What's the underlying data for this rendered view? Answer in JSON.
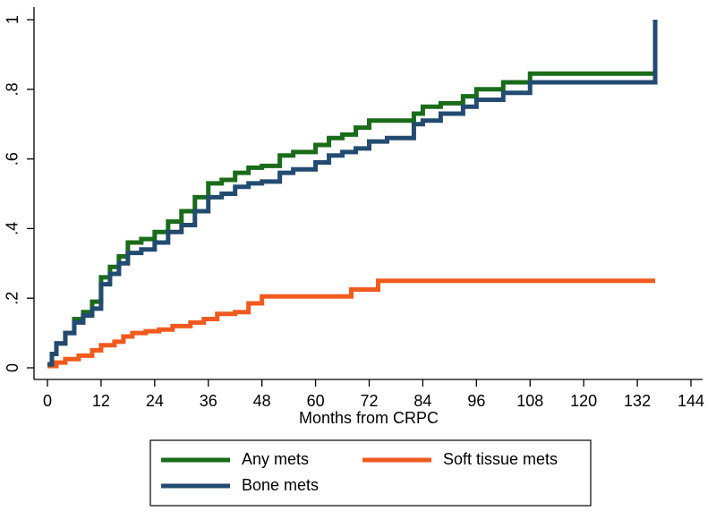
{
  "chart_data": {
    "type": "line",
    "step": true,
    "x_label": "Months from CRPC",
    "xlim": [
      0,
      144
    ],
    "xticks": [
      0,
      12,
      24,
      36,
      48,
      60,
      72,
      84,
      96,
      108,
      120,
      132,
      144
    ],
    "ylim": [
      0,
      1
    ],
    "yticks": [
      0,
      {
        "value": 0.2,
        "label": ".2"
      },
      {
        "value": 0.4,
        "label": ".4"
      },
      {
        "value": 0.6,
        "label": ".6"
      },
      {
        "value": 0.8,
        "label": ".8"
      },
      1
    ],
    "grid": false,
    "legend": "bottom",
    "series": [
      {
        "name": "Any mets",
        "color": "#1a6b1a",
        "x": [
          0,
          1,
          2,
          4,
          6,
          8,
          10,
          12,
          14,
          16,
          18,
          21,
          24,
          27,
          30,
          33,
          36,
          39,
          42,
          45,
          48,
          52,
          55,
          60,
          63,
          66,
          69,
          72,
          82,
          84,
          88,
          93,
          96,
          102,
          108,
          136
        ],
        "values": [
          0.01,
          0.04,
          0.07,
          0.1,
          0.14,
          0.16,
          0.19,
          0.26,
          0.29,
          0.32,
          0.36,
          0.37,
          0.39,
          0.42,
          0.45,
          0.49,
          0.53,
          0.54,
          0.56,
          0.575,
          0.58,
          0.61,
          0.62,
          0.64,
          0.66,
          0.67,
          0.69,
          0.71,
          0.73,
          0.75,
          0.76,
          0.78,
          0.8,
          0.82,
          0.845,
          0.845
        ]
      },
      {
        "name": "Soft tissue mets",
        "color": "#f05a1e",
        "x": [
          0,
          2,
          4,
          7,
          10,
          12,
          15,
          17,
          19,
          22,
          25,
          28,
          32,
          35,
          38,
          42,
          45,
          48,
          68,
          74,
          136
        ],
        "values": [
          0.005,
          0.015,
          0.025,
          0.035,
          0.05,
          0.065,
          0.075,
          0.09,
          0.1,
          0.105,
          0.11,
          0.12,
          0.13,
          0.14,
          0.155,
          0.16,
          0.185,
          0.205,
          0.225,
          0.25,
          0.25
        ]
      },
      {
        "name": "Bone mets",
        "color": "#234b70",
        "x": [
          0,
          1,
          2,
          4,
          6,
          8,
          10,
          12,
          14,
          16,
          18,
          21,
          24,
          27,
          30,
          33,
          36,
          39,
          42,
          45,
          48,
          52,
          55,
          60,
          63,
          66,
          69,
          72,
          76,
          82,
          84,
          88,
          93,
          96,
          102,
          108,
          136,
          136
        ],
        "values": [
          0.01,
          0.04,
          0.07,
          0.1,
          0.13,
          0.15,
          0.17,
          0.24,
          0.27,
          0.3,
          0.33,
          0.34,
          0.36,
          0.39,
          0.41,
          0.45,
          0.49,
          0.5,
          0.52,
          0.53,
          0.535,
          0.56,
          0.57,
          0.59,
          0.61,
          0.62,
          0.63,
          0.65,
          0.66,
          0.7,
          0.71,
          0.73,
          0.75,
          0.77,
          0.79,
          0.82,
          0.82,
          1
        ]
      }
    ]
  }
}
